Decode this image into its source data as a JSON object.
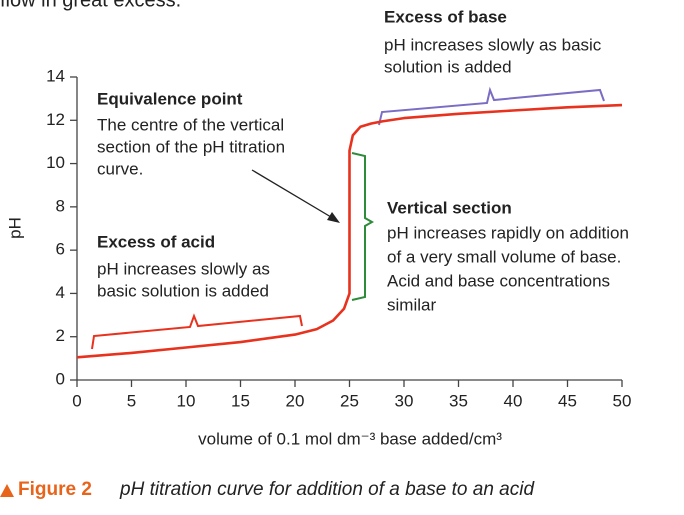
{
  "chart_data": {
    "type": "line",
    "intro_text": "flow in great excess.",
    "ylabel": "pH",
    "xlabel": "volume of 0.1 mol dm⁻³ base added/cm³",
    "x": [
      0,
      5,
      10,
      15,
      20,
      22,
      23.5,
      24.5,
      25,
      25,
      25.3,
      26,
      27,
      28,
      30,
      35,
      40,
      45,
      50
    ],
    "series": [
      {
        "name": "pH",
        "color": "#e8321e",
        "values": [
          1.05,
          1.25,
          1.5,
          1.75,
          2.1,
          2.35,
          2.75,
          3.3,
          4.0,
          10.6,
          11.3,
          11.7,
          11.85,
          11.95,
          12.1,
          12.3,
          12.45,
          12.6,
          12.7
        ]
      }
    ],
    "xlim": [
      0,
      50
    ],
    "ylim": [
      0,
      14
    ],
    "xticks": [
      0,
      5,
      10,
      15,
      20,
      25,
      30,
      35,
      40,
      45,
      50
    ],
    "yticks": [
      0,
      2,
      4,
      6,
      8,
      10,
      12,
      14
    ],
    "grid": false,
    "annotations": [
      {
        "title": "Excess of base",
        "lines": [
          "pH increases slowly as basic",
          "solution is added"
        ]
      },
      {
        "title": "Equivalence point",
        "lines": [
          "The centre of the vertical",
          "section of the pH titration",
          "curve."
        ]
      },
      {
        "title": "Excess of acid",
        "lines": [
          "pH increases slowly as",
          "basic solution is added"
        ]
      },
      {
        "title": "Vertical section",
        "lines": [
          "pH increases rapidly on addition",
          "of a very small volume of base.",
          "Acid and base concentrations",
          "similar"
        ]
      }
    ],
    "caption_label": "Figure 2",
    "caption_text": "pH titration curve for addition of a base to an acid"
  }
}
